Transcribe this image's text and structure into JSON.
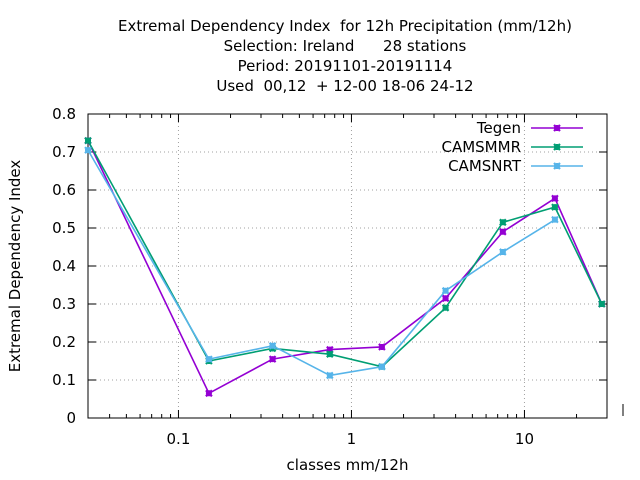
{
  "chart_data": {
    "type": "line",
    "title_lines": [
      "Extremal Dependency Index  for 12h Precipitation (mm/12h)",
      "Selection: Ireland      28 stations",
      "Period: 20191101-20191114",
      "Used  00,12  + 12-00 18-06 24-12"
    ],
    "xlabel": "classes mm/12h",
    "ylabel": "Extremal Dependency Index",
    "xscale": "log",
    "xlim": [
      0.03,
      30
    ],
    "ylim": [
      0,
      0.8
    ],
    "x_ticks": [
      0.1,
      1,
      10
    ],
    "x_tick_labels": [
      "0.1",
      "1",
      "10"
    ],
    "y_ticks": [
      0,
      0.1,
      0.2,
      0.3,
      0.4,
      0.5,
      0.6,
      0.7,
      0.8
    ],
    "y_tick_labels": [
      "0",
      "0.1",
      "0.2",
      "0.3",
      "0.4",
      "0.5",
      "0.6",
      "0.7",
      "0.8"
    ],
    "grid": true,
    "legend_position": "top-right",
    "series": [
      {
        "name": "Tegen",
        "color": "#9400d3",
        "x": [
          0.03,
          0.15,
          0.35,
          0.75,
          1.5,
          3.5,
          7.5,
          15,
          28
        ],
        "y": [
          0.73,
          0.065,
          0.155,
          0.18,
          0.187,
          0.315,
          0.49,
          0.578,
          0.3
        ]
      },
      {
        "name": "CAMSMMR",
        "color": "#009e73",
        "x": [
          0.03,
          0.15,
          0.35,
          0.75,
          1.5,
          3.5,
          7.5,
          15,
          28
        ],
        "y": [
          0.73,
          0.15,
          0.183,
          0.168,
          0.135,
          0.29,
          0.515,
          0.555,
          0.3
        ]
      },
      {
        "name": "CAMSNRT",
        "color": "#56b4e9",
        "x": [
          0.03,
          0.15,
          0.35,
          0.75,
          1.5,
          3.5,
          7.5,
          15
        ],
        "y": [
          0.705,
          0.155,
          0.19,
          0.112,
          0.135,
          0.335,
          0.437,
          0.522
        ]
      }
    ]
  }
}
